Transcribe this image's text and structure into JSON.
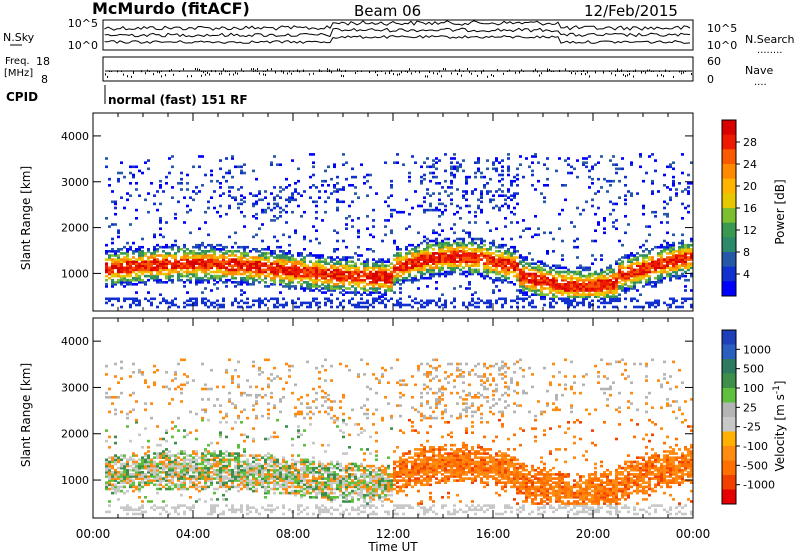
{
  "header": {
    "station": "McMurdo (fitACF)",
    "beam": "Beam 06",
    "date": "12/Feb/2015"
  },
  "top_panels": {
    "nsky_label": "N.Sky",
    "nsearch_label": "N.Search",
    "nsearch_dots": "........",
    "counts_ticks_left": [
      "10^5",
      "10^0"
    ],
    "counts_ticks_right": [
      "10^5",
      "10^0"
    ],
    "freq_label_1": "Freq.",
    "freq_label_2": "[MHz]",
    "freq_ticks": [
      "18",
      "8"
    ],
    "nave_label": "Nave",
    "nave_dots": "....",
    "nave_ticks": [
      "60",
      "0"
    ],
    "cpid_label": "CPID",
    "cpid_text": "normal (fast) 151 RF"
  },
  "colorbars": {
    "power": {
      "label": "Power [dB]",
      "ticks": [
        "28",
        "24",
        "20",
        "16",
        "12",
        "8",
        "4"
      ],
      "colors": [
        "#d90000",
        "#ee1a00",
        "#f95a00",
        "#ff8a00",
        "#ffb400",
        "#e6c800",
        "#7cbf30",
        "#3a9950",
        "#2c8a6a",
        "#2558a8",
        "#1030d0",
        "#0000ff"
      ]
    },
    "velocity": {
      "label": "Velocity [m s",
      "label_sup": "-1",
      "label_end": "]",
      "ticks": [
        "1000",
        "500",
        "100",
        "25",
        "-25",
        "-100",
        "-500",
        "-1000"
      ],
      "colors": [
        "#1e3fb8",
        "#2a5fc0",
        "#2e7a60",
        "#3d8f4a",
        "#5fc040",
        "#b4b4b4",
        "#c8c8c8",
        "#ffb000",
        "#ff8c10",
        "#ff7000",
        "#f24000",
        "#e60000"
      ]
    }
  },
  "chart_data": [
    {
      "type": "heatmap",
      "title": "Power",
      "ylabel": "Slant Range [km]",
      "xlabel": "Time UT",
      "xlim": [
        "00:00",
        "24:00"
      ],
      "ylim": [
        180,
        4500
      ],
      "y_ticks": [
        1000,
        2000,
        3000,
        4000
      ],
      "x_tick_labels": [
        "00:00",
        "04:00",
        "08:00",
        "12:00",
        "16:00",
        "20:00",
        "00:00"
      ],
      "colorbar_range_db": [
        0,
        30
      ],
      "scatter_band_km": [
        550,
        1550
      ],
      "peak_echo_band_km": [
        650,
        1100
      ]
    },
    {
      "type": "heatmap",
      "title": "Velocity",
      "ylabel": "Slant Range [km]",
      "xlabel": "Time UT",
      "xlim": [
        "00:00",
        "24:00"
      ],
      "ylim": [
        180,
        4500
      ],
      "y_ticks": [
        1000,
        2000,
        3000,
        4000
      ],
      "x_tick_labels": [
        "00:00",
        "04:00",
        "08:00",
        "12:00",
        "16:00",
        "20:00",
        "00:00"
      ],
      "colorbar_levels_ms": [
        1000,
        500,
        100,
        25,
        -25,
        -100,
        -500,
        -1000
      ],
      "dominant_velocity_after_1200": "negative (orange)",
      "dominant_velocity_before_1200": "mixed grey/green/orange"
    }
  ],
  "axis": {
    "y_label": "Slant Range [km]",
    "y_ticks": [
      "1000",
      "2000",
      "3000",
      "4000"
    ],
    "x_ticks": [
      "00:00",
      "04:00",
      "08:00",
      "12:00",
      "16:00",
      "20:00",
      "00:00"
    ],
    "x_label": "Time UT"
  }
}
